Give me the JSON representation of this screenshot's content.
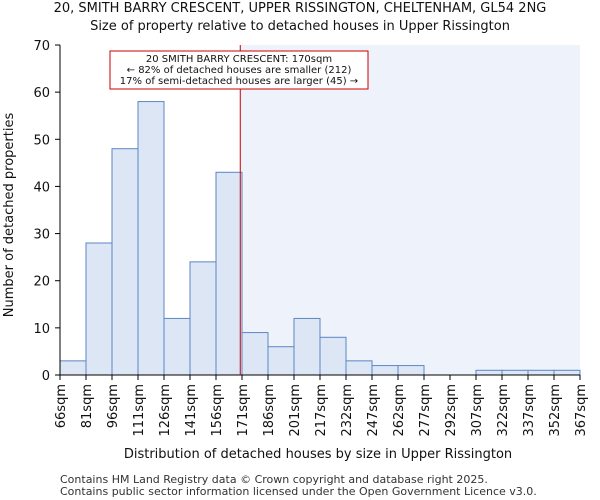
{
  "header": {
    "title": "20, SMITH BARRY CRESCENT, UPPER RISSINGTON, CHELTENHAM, GL54 2NG",
    "subtitle": "Size of property relative to detached houses in Upper Rissington"
  },
  "footer": {
    "line1": "Contains HM Land Registry data © Crown copyright and database right 2025.",
    "line2": "Contains public sector information licensed under the Open Government Licence v3.0."
  },
  "chart_data": {
    "type": "bar",
    "title": "Size of property relative to detached houses in Upper Rissington",
    "xlabel": "Distribution of detached houses by size in Upper Rissington",
    "ylabel": "Number of detached properties",
    "ylim": [
      0,
      70
    ],
    "yticks": [
      0,
      10,
      20,
      30,
      40,
      50,
      60,
      70
    ],
    "grid": false,
    "bin_edges": [
      "66sqm",
      "81sqm",
      "96sqm",
      "111sqm",
      "126sqm",
      "141sqm",
      "156sqm",
      "171sqm",
      "186sqm",
      "201sqm",
      "217sqm",
      "232sqm",
      "247sqm",
      "262sqm",
      "277sqm",
      "292sqm",
      "307sqm",
      "322sqm",
      "337sqm",
      "352sqm",
      "367sqm"
    ],
    "values": [
      3,
      28,
      48,
      58,
      12,
      24,
      43,
      9,
      6,
      12,
      8,
      3,
      2,
      2,
      0,
      0,
      1,
      1,
      1,
      1
    ],
    "marker": {
      "value": 170,
      "label": "170sqm"
    },
    "annotation": {
      "lines": [
        "20 SMITH BARRY CRESCENT: 170sqm",
        "← 82% of detached houses are smaller (212)",
        "17% of semi-detached houses are larger (45) →"
      ]
    },
    "colors": {
      "bar_fill": "#dce6f5",
      "bar_stroke": "#5b86c5",
      "marker": "#cc0000",
      "shade": "#eef2fb"
    }
  }
}
